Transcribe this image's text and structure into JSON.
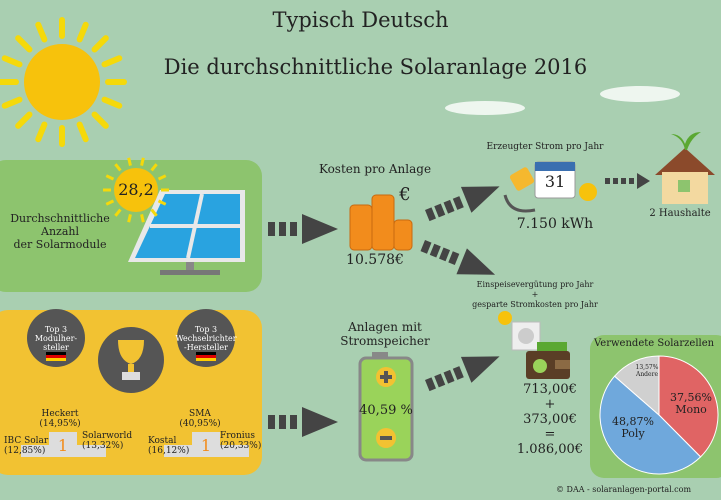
{
  "title": "Typisch Deutsch",
  "subtitle": "Die durchschnittliche Solaranlage 2016",
  "modules": {
    "count": "28,2",
    "label_1": "Durchschnittliche",
    "label_2": "Anzahl",
    "label_3": "der Solarmodule"
  },
  "cost": {
    "label": "Kosten pro Anlage",
    "currency_symbol": "€",
    "value": "10.578€"
  },
  "power": {
    "label": "Erzeugter Strom pro Jahr",
    "calendar_day": "31",
    "value": "7.150 kWh",
    "households": "2 Haushalte"
  },
  "feedin": {
    "label_1": "Einspeisevergütung pro Jahr",
    "plus": "+",
    "label_2": "gesparte Stromkosten pro Jahr",
    "v1": "713,00€",
    "v2": "373,00€",
    "eq": "=",
    "total": "1.086,00€"
  },
  "storage": {
    "label_1": "Anlagen mit",
    "label_2": "Stromspeicher",
    "value": "40,59 %"
  },
  "top_modules": {
    "badge_1": "Top 3",
    "badge_2": "Modulher-",
    "badge_3": "steller",
    "first": "Heckert",
    "first_pct": "(14,95%)",
    "second": "IBC Solar",
    "second_pct": "(12,85%)",
    "third": "Solarworld",
    "third_pct": "(13,32%)",
    "rank": "1"
  },
  "top_inverters": {
    "badge_1": "Top 3",
    "badge_2": "Wechselrichter",
    "badge_3": "-Hersteller",
    "first": "SMA",
    "first_pct": "(40,95%)",
    "second": "Kostal",
    "second_pct": "(16,12%)",
    "third": "Fronius",
    "third_pct": "(20,33%)",
    "rank": "1"
  },
  "chart_data": {
    "type": "pie",
    "title": "Verwendete Solarzellen",
    "slices": [
      {
        "name": "Mono",
        "value": 37.56,
        "label": "37,56%",
        "color": "#e06464"
      },
      {
        "name": "Poly",
        "value": 48.87,
        "label": "48,87%",
        "color": "#6fa8dc"
      },
      {
        "name": "Andere",
        "value": 13.57,
        "label": "13,57%",
        "color": "#d0d0d0"
      }
    ]
  },
  "copyright": "© DAA - solaranlagen-portal.com",
  "colors": {
    "background": "#a9cfb1",
    "green_panel": "#8dc46e",
    "yellow_panel": "#f2c232",
    "dark": "#444444"
  }
}
